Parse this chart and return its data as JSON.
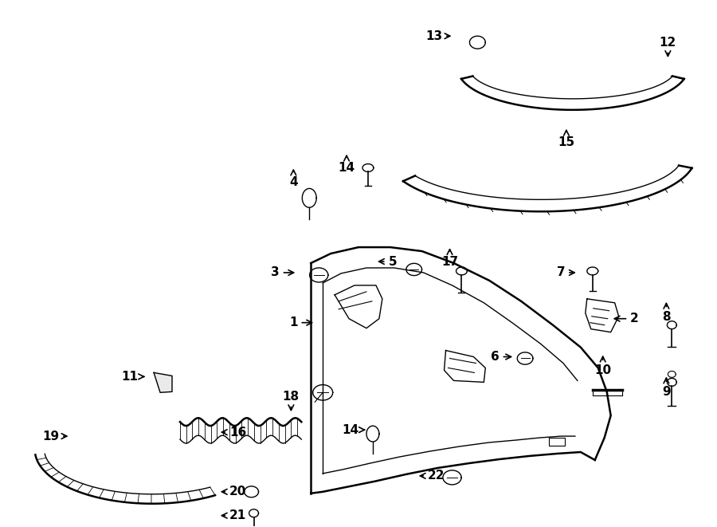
{
  "background_color": "#ffffff",
  "line_color": "#000000",
  "text_color": "#000000"
}
